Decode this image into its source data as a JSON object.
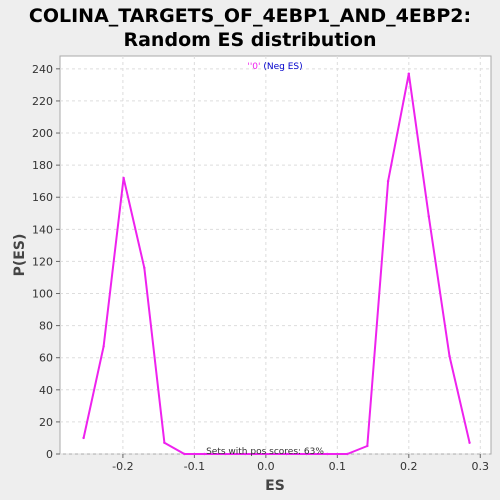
{
  "chart_data": {
    "type": "line",
    "title_lines": [
      "COLINA_TARGETS_OF_4EBP1_AND_4EBP2:",
      "Random ES distribution"
    ],
    "xlabel": "ES",
    "ylabel": "P(ES)",
    "xlim": [
      -0.288,
      0.315
    ],
    "ylim": [
      0,
      248
    ],
    "x_ticks": [
      -0.2,
      -0.1,
      0.0,
      0.1,
      0.2,
      0.3
    ],
    "x_tick_labels": [
      "-0.2",
      "-0.1",
      "0.0",
      "0.1",
      "0.2",
      "0.3"
    ],
    "y_ticks": [
      0,
      20,
      40,
      60,
      80,
      100,
      120,
      140,
      160,
      180,
      200,
      220,
      240
    ],
    "grid": true,
    "legend_placement": "top-center",
    "legend_quote": "''0'",
    "legend_text": " (Neg ES)",
    "annotation": "Sets with pos scores: 63%",
    "line_color": "#ee22ee",
    "series": [
      {
        "x": [
          -0.255,
          -0.227,
          -0.199,
          -0.17,
          -0.142,
          -0.114,
          -0.086,
          -0.057,
          -0.029,
          0.0,
          0.029,
          0.057,
          0.086,
          0.114,
          0.142,
          0.171,
          0.2,
          0.228,
          0.257,
          0.285
        ],
        "values": [
          10,
          67,
          172,
          116,
          7,
          0,
          0,
          0,
          0,
          0,
          0,
          0,
          0,
          0,
          5,
          170,
          237,
          148,
          61,
          7
        ]
      }
    ]
  }
}
